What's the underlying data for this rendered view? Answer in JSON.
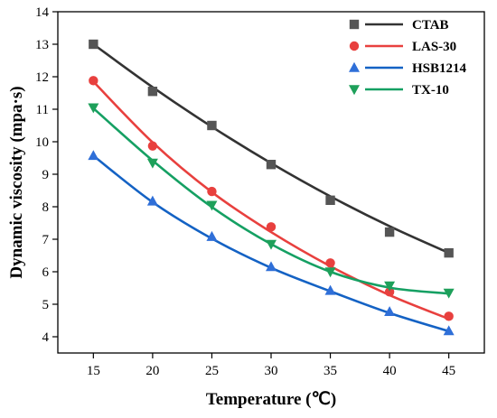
{
  "chart_data": {
    "type": "line",
    "x": [
      15,
      20,
      25,
      30,
      35,
      40,
      45
    ],
    "xlabel": "Temperature (℃)",
    "ylabel": "Dynamic viscosity (mpa·s)",
    "xlim": [
      12,
      48
    ],
    "ylim": [
      3.5,
      14
    ],
    "xticks": [
      15,
      20,
      25,
      30,
      35,
      40,
      45
    ],
    "yticks": [
      4,
      5,
      6,
      7,
      8,
      9,
      10,
      11,
      12,
      13,
      14
    ],
    "grid": false,
    "legend_position": "top-right",
    "series": [
      {
        "name": "CTAB",
        "marker": "square",
        "color": "#555555",
        "line_color": "#333333",
        "values": [
          13.0,
          11.55,
          10.5,
          9.3,
          8.2,
          7.22,
          6.58
        ],
        "fit": [
          13.0,
          11.68,
          10.46,
          9.34,
          8.32,
          7.4,
          6.58
        ]
      },
      {
        "name": "LAS-30",
        "marker": "circle",
        "color": "#e8403e",
        "line_color": "#e8403e",
        "values": [
          11.88,
          9.87,
          8.47,
          7.38,
          6.27,
          5.38,
          4.63
        ],
        "fit": [
          11.85,
          9.98,
          8.45,
          7.22,
          6.17,
          5.28,
          4.55
        ]
      },
      {
        "name": "HSB1214",
        "marker": "triangle-up",
        "color": "#2f6fd8",
        "line_color": "#1462c4",
        "values": [
          9.57,
          8.17,
          7.08,
          6.15,
          5.42,
          4.77,
          4.18
        ],
        "fit": [
          9.57,
          8.14,
          7.02,
          6.12,
          5.4,
          4.73,
          4.17
        ]
      },
      {
        "name": "TX-10",
        "marker": "triangle-down",
        "color": "#1ea05a",
        "line_color": "#15a063",
        "values": [
          11.05,
          9.35,
          8.05,
          6.85,
          6.0,
          5.57,
          5.35
        ],
        "fit": [
          11.03,
          9.42,
          7.99,
          6.85,
          6.0,
          5.51,
          5.33
        ]
      }
    ]
  }
}
